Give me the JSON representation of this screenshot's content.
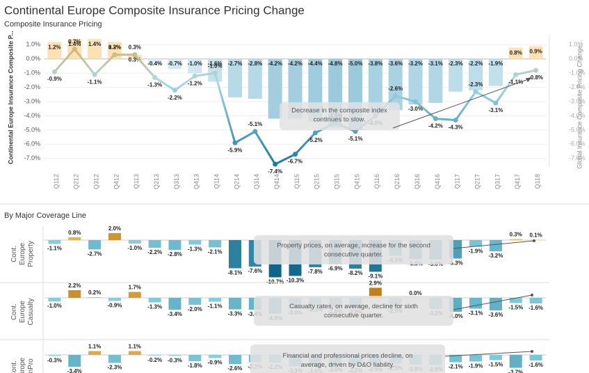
{
  "chart_data": [
    {
      "type": "combo",
      "title": "Continental Europe Composite Insurance Pricing Change",
      "subtitle": "Composite Insurance Pricing",
      "y_label": "Continental Europe Insurance Composite P...",
      "y2_label": "Global Insurance Composite Pricing Change...",
      "categories": [
        "Q112",
        "Q212",
        "Q312",
        "Q412",
        "Q113",
        "Q213",
        "Q313",
        "Q413",
        "Q114",
        "Q214",
        "Q314",
        "Q414",
        "Q115",
        "Q215",
        "Q315",
        "Q415",
        "Q116",
        "Q216",
        "Q316",
        "Q416",
        "Q117",
        "Q217",
        "Q317",
        "Q417",
        "Q118"
      ],
      "ylim": [
        -7.6,
        1.7
      ],
      "y2lim": [
        -7.6,
        1.7
      ],
      "yticks": [
        {
          "value": 1,
          "label": "1.0%"
        },
        {
          "value": 0,
          "label": "0.0%"
        },
        {
          "value": -1,
          "label": "-1.0%"
        },
        {
          "value": -2,
          "label": "-2.0%"
        },
        {
          "value": -3,
          "label": "-3.0%"
        },
        {
          "value": -4,
          "label": "-4.0%"
        },
        {
          "value": -5,
          "label": "-5.0%"
        },
        {
          "value": -6,
          "label": "-6.0%"
        },
        {
          "value": -7,
          "label": "-7.0%"
        }
      ],
      "y2ticks": [
        {
          "value": 1,
          "label": "1.0%"
        },
        {
          "value": 0,
          "label": "0.0%"
        },
        {
          "value": -1,
          "label": "-1.0%"
        },
        {
          "value": -2,
          "label": "-2.0%"
        },
        {
          "value": -3,
          "label": "-3.0%"
        },
        {
          "value": -4,
          "label": "-4.0%"
        },
        {
          "value": -5,
          "label": "-5.0%"
        },
        {
          "value": -6,
          "label": "-6.0%"
        },
        {
          "value": -7,
          "label": "-7.0%"
        }
      ],
      "grid": true,
      "series": [
        {
          "axis": "y2",
          "mark": "bar",
          "values": [
            1.2,
            1.4,
            1.4,
            1.2,
            0.3,
            -0.4,
            -0.7,
            -1.0,
            -1.6,
            -2.7,
            -2.8,
            -4.2,
            -4.2,
            -4.4,
            -4.8,
            -5.0,
            -3.8,
            -3.6,
            -3.2,
            -3.1,
            -2.3,
            -2.2,
            -1.9,
            0.8,
            0.9
          ],
          "value_labels": [
            "1.2%",
            "1.4%",
            "1.4%",
            "1.2%",
            "0.3%",
            "-0.4%",
            "-0.7%",
            "-1.0%",
            "-1.6%",
            "-2.7%",
            "-2.8%",
            "-4.2%",
            "-4.2%",
            "-4.4%",
            "-4.8%",
            "-5.0%",
            "-3.8%",
            "-3.6%",
            "-3.2%",
            "-3.1%",
            "-2.3%",
            "-2.2%",
            "-1.9%",
            "0.8%",
            "0.9%"
          ]
        },
        {
          "axis": "y",
          "mark": "line",
          "values": [
            -0.9,
            0.7,
            -1.1,
            0.3,
            0.3,
            -1.3,
            -2.2,
            -1.2,
            -1.0,
            -5.9,
            -5.1,
            -7.4,
            -6.7,
            -5.2,
            -4.5,
            -5.1,
            -4.0,
            -2.6,
            -3.0,
            -4.2,
            -4.3,
            -2.3,
            -3.1,
            -1.1,
            -0.8
          ],
          "value_labels": [
            "-0.9%",
            "0.7%",
            "-1.1%",
            "0.3%",
            "0.3%",
            "-1.3%",
            "-2.2%",
            "-1.2%",
            "-1.0%",
            "-5.9%",
            "-5.1%",
            "-7.4%",
            "-6.7%",
            "-5.2%",
            "-4.5%",
            "-5.1%",
            "-4.0%",
            "-2.6%",
            "-3.0%",
            "-4.2%",
            "-4.3%",
            "-2.3%",
            "-3.1%",
            "-1.1%",
            "-0.8%"
          ]
        }
      ],
      "annotation": "Decrease in the composite index continues to slow.",
      "bar_colors": {
        "positive": "#fbe2b4",
        "negative_light": "#dceff6",
        "negative_dark": "#9ccadd"
      },
      "line_colors": {
        "top": "#eaa53c",
        "bottom": "#137aa3"
      }
    },
    {
      "type": "bar",
      "title": "By Major Coverage Line",
      "ylim": [
        -12,
        4
      ],
      "series": [
        {
          "name": "Cont. Europe Property",
          "values": [
            -1.1,
            0.8,
            -2.7,
            2.0,
            -1.0,
            -2.2,
            -2.8,
            -1.3,
            -2.1,
            -8.1,
            -7.6,
            -10.7,
            -10.3,
            -7.8,
            -6.9,
            -8.2,
            -9.1,
            -4.5,
            -5.5,
            -5.6,
            -5.3,
            -1.9,
            -3.2,
            0.3,
            0.1
          ],
          "value_labels": [
            "-1.1%",
            "0.8%",
            "-2.7%",
            "2.0%",
            "-1.0%",
            "-2.2%",
            "-2.8%",
            "-1.3%",
            "-2.1%",
            "-8.1%",
            "-7.6%",
            "-10.7%",
            "-10.3%",
            "-7.8%",
            "-6.9%",
            "-8.2%",
            "-9.1%",
            "-4.5%",
            "-5.5%",
            "-5.6%",
            "-5.3%",
            "-1.9%",
            "-3.2%",
            "0.3%",
            "0.1%"
          ],
          "annotation": "Property prices, on average, increase for the second consecutive quarter."
        },
        {
          "name": "Cont. Europe Casualty",
          "values": [
            -1.0,
            2.2,
            0.2,
            -0.9,
            1.7,
            -1.3,
            -3.4,
            -2.0,
            -1.1,
            -3.3,
            -3.4,
            -4.6,
            -3.0,
            -2.1,
            -2.6,
            -2.8,
            2.9,
            -2.5,
            0.0,
            -3.2,
            -4.0,
            -3.1,
            -3.6,
            -1.5,
            -1.6
          ],
          "value_labels": [
            "-1.0%",
            "2.2%",
            "0.2%",
            "-0.9%",
            "1.7%",
            "-1.3%",
            "-3.4%",
            "-2.0%",
            "-1.1%",
            "-3.3%",
            "-3.4%",
            "-4.6%",
            "-3.0%",
            "-2.1%",
            "-2.6%",
            "-2.8%",
            "2.9%",
            "-2.5%",
            "0.0%",
            "-3.2%",
            "-4.0%",
            "-3.1%",
            "-3.6%",
            "-1.5%",
            "-1.6%"
          ],
          "annotation": "Casualty rates, on average, decline for sixth consecutive quarter."
        },
        {
          "name": "Cont. Europe FinPro",
          "values": [
            -0.3,
            -3.4,
            1.1,
            -2.3,
            1.1,
            -0.2,
            -0.3,
            -1.8,
            -0.9,
            -2.6,
            -2.1,
            -2.2,
            -3.3,
            -3.5,
            -3.0,
            -3.2,
            -2.9,
            -2.5,
            -2.8,
            -2.9,
            -2.1,
            -1.9,
            -1.5,
            -3.7,
            -1.6
          ],
          "value_labels": [
            "-0.3%",
            "-3.4%",
            "1.1%",
            "-2.3%",
            "1.1%",
            "-0.2%",
            "-0.3%",
            "-1.8%",
            "-0.9%",
            "-2.6%",
            "-2.1%",
            "-2.2%",
            "-3.3%",
            "-3.5%",
            "-3.0%",
            "-3.2%",
            "-2.9%",
            "-2.5%",
            "-2.8%",
            "-2.9%",
            "-2.1%",
            "-1.9%",
            "-1.5%",
            "-3.7%",
            "-1.6%"
          ],
          "annotation": "Financial and professional prices decline, on average, driven by D&O liability."
        }
      ],
      "colors": {
        "positive_light": "#f2c46a",
        "positive_dark": "#c07f1a",
        "negative_light": "#8fd8e6",
        "negative_dark": "#0a6389"
      }
    }
  ]
}
